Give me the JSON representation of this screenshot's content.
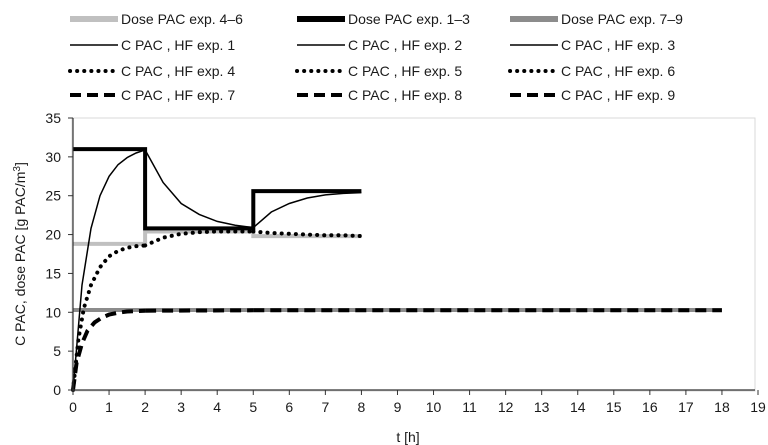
{
  "chart_data": {
    "type": "line",
    "xlabel": "t [h]",
    "ylabel_main": "C PAC, dose PAC [g PAC/m",
    "ylabel_sup": "3",
    "ylabel_end": "]",
    "xlim": [
      0,
      19
    ],
    "ylim": [
      0,
      35
    ],
    "xticks": [
      0,
      1,
      2,
      3,
      4,
      5,
      6,
      7,
      8,
      9,
      10,
      11,
      12,
      13,
      14,
      15,
      16,
      17,
      18,
      19
    ],
    "yticks": [
      0,
      5,
      10,
      15,
      20,
      25,
      30,
      35
    ],
    "grid": false,
    "legend_position": "top",
    "series": [
      {
        "name": "Dose PAC exp. 4–6",
        "color": "#c0c0c0",
        "style": "thick",
        "x": [
          0,
          2,
          2,
          5,
          5,
          8
        ],
        "y": [
          18.8,
          18.8,
          20.4,
          20.4,
          19.8,
          19.8
        ]
      },
      {
        "name": "Dose PAC exp. 1–3",
        "color": "#000000",
        "style": "thick",
        "x": [
          0,
          2,
          2,
          5,
          5,
          8
        ],
        "y": [
          31,
          31,
          20.8,
          20.8,
          25.6,
          25.6
        ]
      },
      {
        "name": "Dose PAC exp. 7–9",
        "color": "#8c8c8c",
        "style": "thick",
        "x": [
          0,
          18
        ],
        "y": [
          10.3,
          10.3
        ]
      },
      {
        "name": "C PAC , HF exp. 1",
        "color": "#000000",
        "style": "thin",
        "x": [
          0,
          0.25,
          0.5,
          0.75,
          1,
          1.25,
          1.5,
          1.75,
          2
        ],
        "y": [
          0,
          13.5,
          20.8,
          25.0,
          27.5,
          29.0,
          29.9,
          30.5,
          30.9
        ]
      },
      {
        "name": "C PAC , HF exp. 2",
        "color": "#000000",
        "style": "thin",
        "x": [
          2,
          2.5,
          3,
          3.5,
          4,
          4.5,
          5
        ],
        "y": [
          30.9,
          26.7,
          24.0,
          22.6,
          21.7,
          21.2,
          20.9
        ]
      },
      {
        "name": "C PAC , HF exp. 3",
        "color": "#000000",
        "style": "thin",
        "x": [
          5,
          5.5,
          6,
          6.5,
          7,
          7.5,
          8
        ],
        "y": [
          20.9,
          22.9,
          24.0,
          24.7,
          25.1,
          25.3,
          25.4
        ]
      },
      {
        "name": "C PAC , HF exp. 4",
        "color": "#000000",
        "style": "dotted",
        "x": [
          0,
          0.15,
          0.3,
          0.5,
          0.75,
          1,
          1.25,
          1.5,
          1.75,
          2
        ],
        "y": [
          0,
          6.5,
          10.5,
          13.5,
          15.8,
          17.2,
          17.9,
          18.3,
          18.5,
          18.6
        ]
      },
      {
        "name": "C PAC , HF exp. 5",
        "color": "#000000",
        "style": "dotted",
        "x": [
          2,
          2.5,
          3,
          3.5,
          4,
          4.5,
          5
        ],
        "y": [
          18.6,
          19.6,
          20.1,
          20.3,
          20.4,
          20.4,
          20.4
        ]
      },
      {
        "name": "C PAC , HF exp. 6",
        "color": "#000000",
        "style": "dotted",
        "x": [
          5,
          5.5,
          6,
          6.5,
          7,
          7.5,
          8
        ],
        "y": [
          20.4,
          20.2,
          20.1,
          20.0,
          19.9,
          19.9,
          19.8
        ]
      },
      {
        "name": "C PAC , HF exp. 7",
        "color": "#000000",
        "style": "dashed",
        "x": [
          0,
          0.1,
          0.25,
          0.4,
          0.6,
          0.8,
          1,
          1.25,
          1.5,
          1.75,
          2
        ],
        "y": [
          0,
          3.5,
          6.0,
          7.6,
          8.7,
          9.3,
          9.7,
          9.95,
          10.1,
          10.15,
          10.2
        ]
      },
      {
        "name": "C PAC , HF exp. 8",
        "color": "#000000",
        "style": "dashed",
        "x": [
          2,
          5
        ],
        "y": [
          10.2,
          10.25
        ]
      },
      {
        "name": "C PAC , HF exp. 9",
        "color": "#000000",
        "style": "dashed",
        "x": [
          5,
          18
        ],
        "y": [
          10.25,
          10.25
        ]
      }
    ]
  }
}
